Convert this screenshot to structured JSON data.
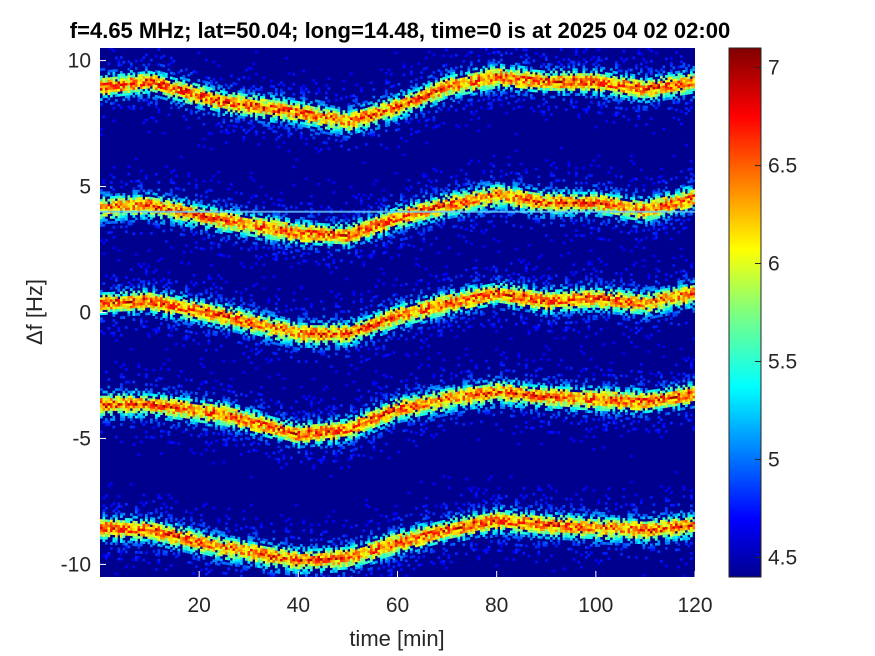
{
  "chart_data": {
    "type": "heatmap",
    "title": "f=4.65 MHz;  lat=50.04; long=14.48, time=0 is at 2025 04 02 02:00",
    "xlabel": "time [min]",
    "ylabel": "Δf [Hz]",
    "xlim": [
      0,
      120
    ],
    "ylim": [
      -10.5,
      10.5
    ],
    "x_ticks": [
      20,
      40,
      60,
      80,
      100,
      120
    ],
    "x_tick_labels": [
      "20",
      "40",
      "60",
      "80",
      "100",
      "120"
    ],
    "y_ticks": [
      10,
      5,
      0,
      -5,
      -10
    ],
    "y_tick_labels": [
      "10",
      "5",
      "0",
      "-5",
      "-10"
    ],
    "colorbar": {
      "colormap": "jet",
      "range": [
        4.4,
        7.1
      ],
      "ticks": [
        4.5,
        5,
        5.5,
        6,
        6.5,
        7
      ],
      "tick_labels": [
        "4.5",
        "5",
        "5.5",
        "6",
        "6.5",
        "7"
      ]
    },
    "series": [
      {
        "center_at_time": {
          "0": 9.0,
          "10": 9.2,
          "25": 8.4,
          "40": 8.0,
          "50": 7.6,
          "60": 8.2,
          "70": 9.0,
          "80": 9.4,
          "90": 9.2,
          "100": 9.2,
          "110": 8.9,
          "120": 9.2
        }
      },
      {
        "center_at_time": {
          "0": 4.2,
          "10": 4.3,
          "25": 3.7,
          "40": 3.2,
          "50": 3.1,
          "60": 3.8,
          "70": 4.3,
          "80": 4.7,
          "90": 4.4,
          "100": 4.4,
          "110": 4.1,
          "120": 4.6
        }
      },
      {
        "center_at_time": {
          "0": 0.4,
          "10": 0.5,
          "25": -0.1,
          "40": -0.8,
          "50": -0.8,
          "60": -0.1,
          "70": 0.4,
          "80": 0.8,
          "90": 0.5,
          "100": 0.6,
          "110": 0.4,
          "120": 0.8
        }
      },
      {
        "center_at_time": {
          "0": -3.6,
          "10": -3.6,
          "25": -4.0,
          "40": -4.8,
          "50": -4.6,
          "60": -3.8,
          "70": -3.4,
          "80": -3.1,
          "90": -3.3,
          "100": -3.4,
          "110": -3.5,
          "120": -3.2
        }
      },
      {
        "center_at_time": {
          "0": -8.5,
          "10": -8.6,
          "25": -9.3,
          "40": -9.8,
          "50": -9.7,
          "60": -9.1,
          "70": -8.6,
          "80": -8.2,
          "90": -8.4,
          "100": -8.5,
          "110": -8.6,
          "120": -8.4
        }
      }
    ],
    "horizontal_line_at": 4.0,
    "background_level": 4.4
  }
}
